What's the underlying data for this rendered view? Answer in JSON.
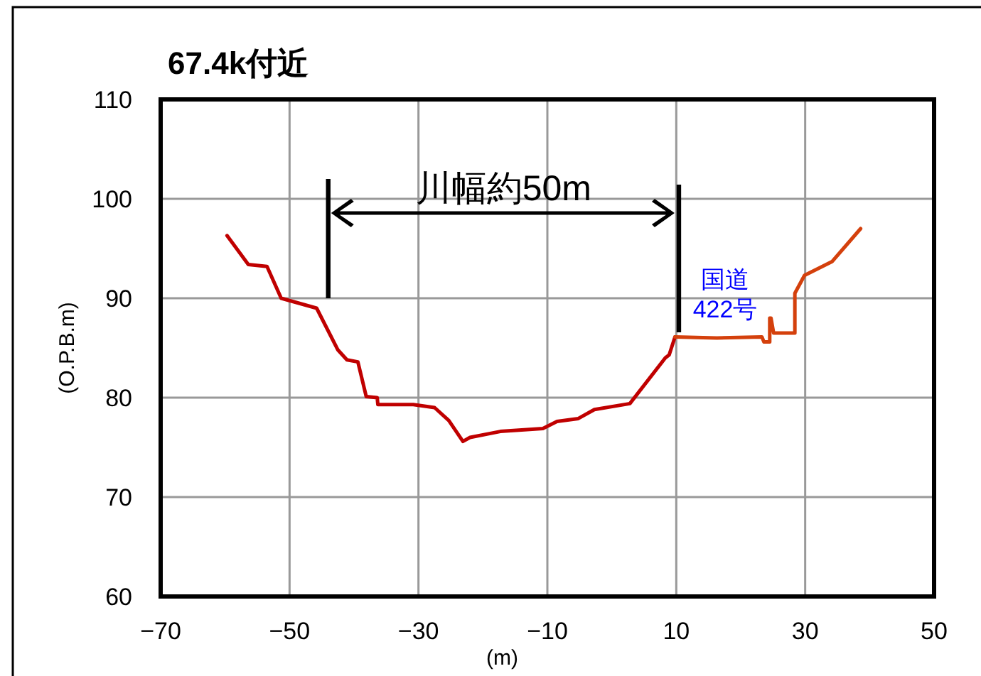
{
  "chart_data": {
    "type": "line",
    "title": "67.4k付近",
    "xlabel": "(m)",
    "ylabel": "(O.P.B.m)",
    "xlim": [
      -70,
      50
    ],
    "ylim": [
      60,
      110
    ],
    "xticks": [
      {
        "value": -70,
        "label": "−70"
      },
      {
        "value": -50,
        "label": "−50"
      },
      {
        "value": -30,
        "label": "−30"
      },
      {
        "value": -10,
        "label": "−10"
      },
      10,
      30,
      50
    ],
    "yticks": [
      60,
      70,
      80,
      90,
      100,
      110
    ],
    "grid": true,
    "series": [
      {
        "color": "#c00000",
        "x": [
          -59.7,
          -56.4,
          -53.5,
          -51.3,
          -45.8,
          -42.5,
          -41.1,
          -39.4,
          -38.1,
          -36.4,
          -36.3,
          -30.8,
          -27.5,
          -25.3,
          -23.1,
          -22.0,
          -17.3,
          -10.7,
          -8.5,
          -5.2,
          -2.7,
          2.8,
          8.3,
          8.9,
          9.8
        ],
        "values": [
          96.3,
          93.4,
          93.2,
          90.0,
          89.0,
          84.8,
          83.8,
          83.6,
          80.1,
          80.0,
          79.3,
          79.3,
          79.0,
          77.7,
          75.6,
          76.0,
          76.6,
          76.9,
          77.6,
          77.9,
          78.8,
          79.4,
          84.0,
          84.3,
          86.1
        ]
      },
      {
        "color": "#d4400c",
        "x": [
          9.8,
          16.3,
          23.3,
          23.6,
          24.5,
          24.5,
          24.7,
          25.1,
          28.4,
          28.4,
          29.9,
          34.2,
          38.6
        ],
        "values": [
          86.1,
          86.0,
          86.1,
          85.6,
          85.6,
          88.0,
          88.0,
          86.5,
          86.5,
          90.5,
          92.3,
          93.7,
          97.0
        ]
      }
    ],
    "ref_lines": [
      {
        "axis": "x",
        "value": -44,
        "color": "#000000"
      },
      {
        "axis": "x",
        "value": 10.4,
        "color": "#000000"
      }
    ],
    "annotations": [
      "川幅約50m",
      "国道\n422号"
    ]
  }
}
